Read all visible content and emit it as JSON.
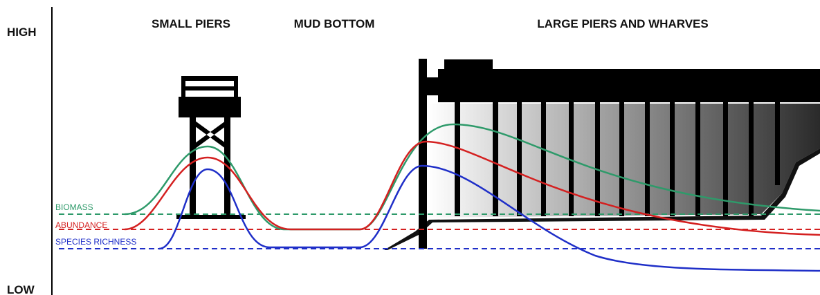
{
  "axis": {
    "high": "HIGH",
    "low": "LOW"
  },
  "sections": [
    "SMALL PIERS",
    "MUD BOTTOM",
    "LARGE PIERS AND WHARVES"
  ],
  "curves": [
    {
      "label": "BIOMASS",
      "color": "#2e9a6a"
    },
    {
      "label": "ABUNDANCE",
      "color": "#d42020"
    },
    {
      "label": "SPECIES RICHNESS",
      "color": "#1f2fc8"
    }
  ]
}
